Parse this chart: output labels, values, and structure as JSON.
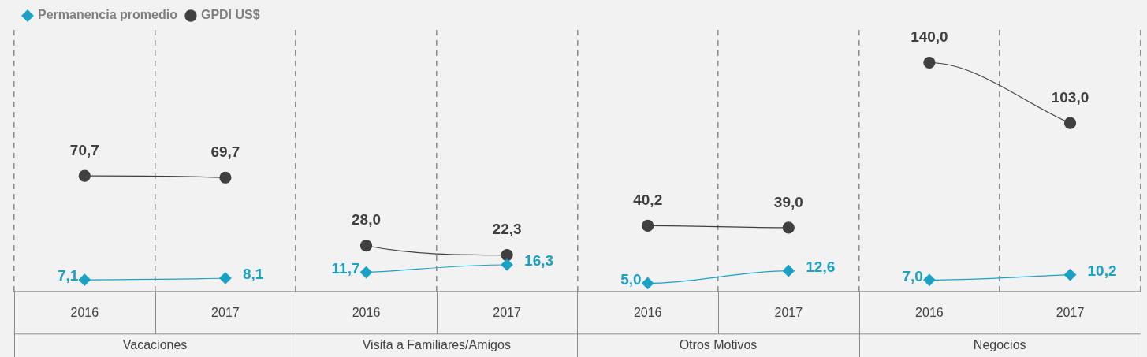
{
  "chart_data": {
    "type": "line",
    "categories": [
      "2016",
      "2017",
      "2016",
      "2017",
      "2016",
      "2017",
      "2016",
      "2017"
    ],
    "annotations": [
      "Vacaciones",
      "Visita a Familiares/Amigos",
      "Otros Motivos",
      "Negocios"
    ],
    "series": [
      {
        "name": "Permanencia promedio",
        "color": "#1ba1c6",
        "values": [
          7.1,
          8.1,
          11.7,
          16.3,
          5.0,
          12.6,
          7.0,
          10.2
        ],
        "value_labels": [
          "7,1",
          "8,1",
          "11,7",
          "16,3",
          "5,0",
          "12,6",
          "7,0",
          "10,2"
        ],
        "marker": "diamond"
      },
      {
        "name": "GPDI US$",
        "color": "#404040",
        "values": [
          70.7,
          69.7,
          28.0,
          22.3,
          40.2,
          39.0,
          140.0,
          103.0
        ],
        "value_labels": [
          "70,7",
          "69,7",
          "28,0",
          "22,3",
          "40,2",
          "39,0",
          "140,0",
          "103,0"
        ],
        "marker": "circle"
      }
    ],
    "grid": "x",
    "legend": "top left"
  }
}
